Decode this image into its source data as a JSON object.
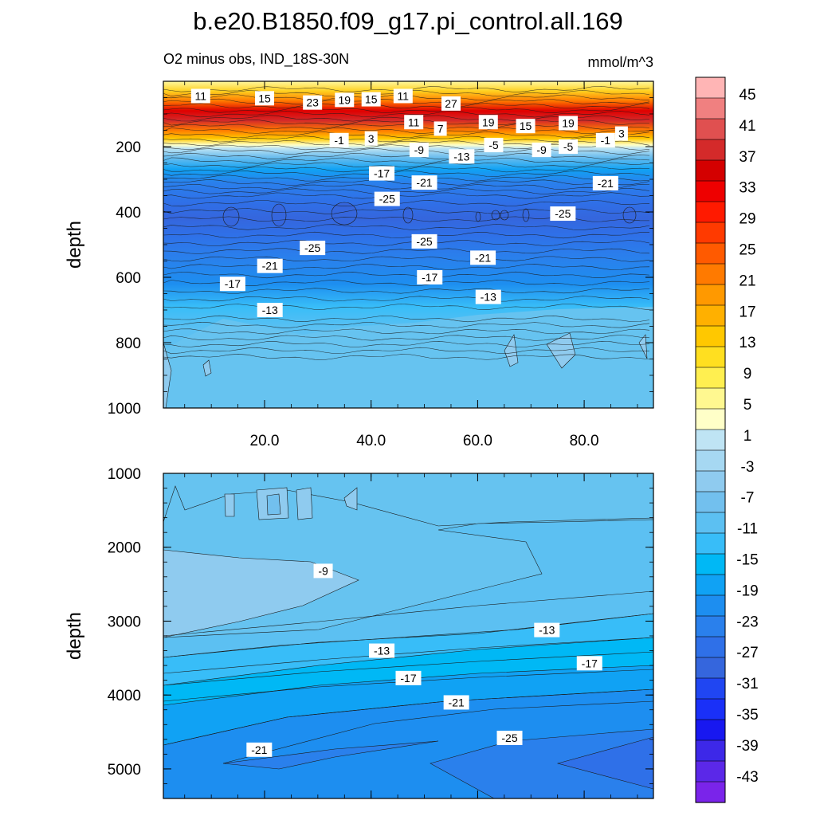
{
  "chart_data": {
    "type": "contour",
    "title": "b.e20.B1850.f09_g17.pi_control.all.169",
    "colorbar": {
      "levels": [
        45,
        41,
        37,
        33,
        29,
        25,
        21,
        17,
        13,
        9,
        5,
        1,
        -3,
        -7,
        -11,
        -15,
        -19,
        -23,
        -27,
        -31,
        -35,
        -39,
        -43
      ],
      "colors": [
        "#ffb5b5",
        "#f08080",
        "#e05050",
        "#d42a2a",
        "#d40000",
        "#ee0000",
        "#ff1a00",
        "#ff3a00",
        "#ff5a00",
        "#ff7a00",
        "#ff9900",
        "#ffb000",
        "#ffc800",
        "#ffdf20",
        "#ffef50",
        "#fff890",
        "#ffffc8",
        "#bfe4f4",
        "#a6d8f2",
        "#8fcbef",
        "#72c0ee",
        "#5cc0f2",
        "#38bdf8",
        "#00b8f5",
        "#10a2f4",
        "#1d8ef0",
        "#2a80ec",
        "#2f70e8",
        "#3566dd",
        "#2046f2",
        "#1a30f8",
        "#1818f0",
        "#3d28e8",
        "#5b28e8",
        "#7a24ea"
      ]
    },
    "panels": [
      {
        "subtitle_left": "O2 minus obs, IND_18S-30N",
        "subtitle_right": "mmol/m^3",
        "ylabel": "depth",
        "ylim": [
          1000,
          0
        ],
        "xlim": [
          1,
          93
        ],
        "yticks": [
          200,
          400,
          600,
          800,
          1000
        ],
        "xticks": [
          20,
          40,
          60,
          80
        ],
        "xtick_labels": [
          "20.0",
          "40.0",
          "60.0",
          "80.0"
        ],
        "contour_labels": [
          {
            "text": "11",
            "x": 8,
            "y": 45
          },
          {
            "text": "15",
            "x": 20,
            "y": 52
          },
          {
            "text": "23",
            "x": 29,
            "y": 65
          },
          {
            "text": "19",
            "x": 35,
            "y": 57
          },
          {
            "text": "15",
            "x": 40,
            "y": 55
          },
          {
            "text": "11",
            "x": 46,
            "y": 45
          },
          {
            "text": "27",
            "x": 55,
            "y": 68
          },
          {
            "text": "11",
            "x": 48,
            "y": 125
          },
          {
            "text": "7",
            "x": 53,
            "y": 145
          },
          {
            "text": "19",
            "x": 62,
            "y": 125
          },
          {
            "text": "15",
            "x": 69,
            "y": 137
          },
          {
            "text": "19",
            "x": 77,
            "y": 128
          },
          {
            "text": "3",
            "x": 87,
            "y": 160
          },
          {
            "text": "-1",
            "x": 84,
            "y": 180
          },
          {
            "text": "-1",
            "x": 34,
            "y": 180
          },
          {
            "text": "3",
            "x": 40,
            "y": 175
          },
          {
            "text": "-5",
            "x": 63,
            "y": 195
          },
          {
            "text": "-5",
            "x": 77,
            "y": 200
          },
          {
            "text": "-9",
            "x": 49,
            "y": 210
          },
          {
            "text": "-9",
            "x": 72,
            "y": 210
          },
          {
            "text": "-13",
            "x": 57,
            "y": 230
          },
          {
            "text": "-17",
            "x": 42,
            "y": 282
          },
          {
            "text": "-21",
            "x": 50,
            "y": 310
          },
          {
            "text": "-21",
            "x": 84,
            "y": 312
          },
          {
            "text": "-25",
            "x": 43,
            "y": 360
          },
          {
            "text": "-25",
            "x": 76,
            "y": 405
          },
          {
            "text": "-25",
            "x": 29,
            "y": 510
          },
          {
            "text": "-25",
            "x": 50,
            "y": 490
          },
          {
            "text": "-21",
            "x": 61,
            "y": 540
          },
          {
            "text": "-21",
            "x": 21,
            "y": 565
          },
          {
            "text": "-17",
            "x": 14,
            "y": 620
          },
          {
            "text": "-17",
            "x": 51,
            "y": 600
          },
          {
            "text": "-13",
            "x": 62,
            "y": 660
          },
          {
            "text": "-13",
            "x": 21,
            "y": 700
          }
        ]
      },
      {
        "subtitle_left": "",
        "subtitle_right": "",
        "ylabel": "depth",
        "ylim": [
          5400,
          1000
        ],
        "xlim": [
          1,
          93
        ],
        "yticks": [
          1000,
          2000,
          3000,
          4000,
          5000
        ],
        "xticks": [
          20,
          40,
          60,
          80
        ],
        "xtick_labels": [],
        "contour_labels": [
          {
            "text": "-9",
            "x": 31,
            "y": 2320
          },
          {
            "text": "-13",
            "x": 42,
            "y": 3400
          },
          {
            "text": "-13",
            "x": 73,
            "y": 3120
          },
          {
            "text": "-17",
            "x": 47,
            "y": 3770
          },
          {
            "text": "-17",
            "x": 81,
            "y": 3570
          },
          {
            "text": "-21",
            "x": 56,
            "y": 4100
          },
          {
            "text": "-21",
            "x": 19,
            "y": 4740
          },
          {
            "text": "-25",
            "x": 66,
            "y": 4580
          }
        ]
      }
    ]
  }
}
